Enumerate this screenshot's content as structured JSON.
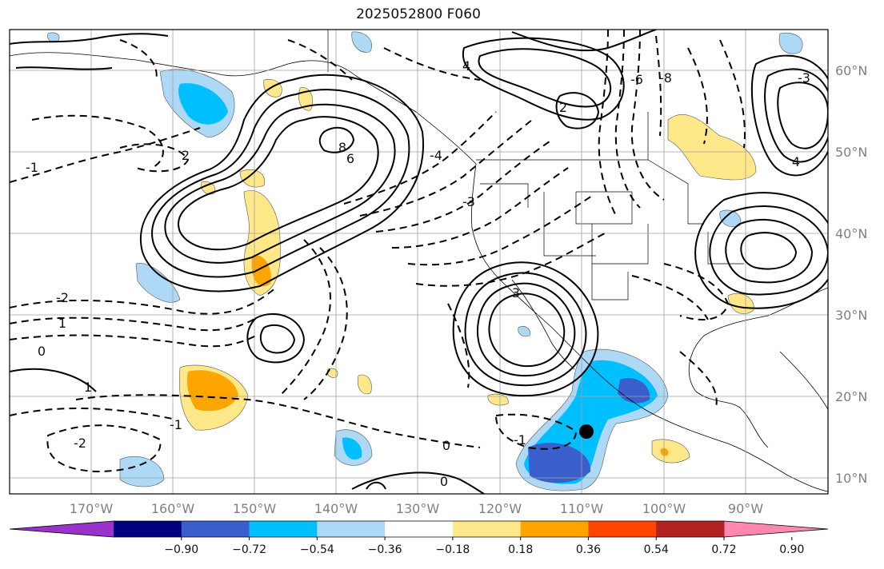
{
  "title": "2025052800 F060",
  "map": {
    "lat_labels": [
      "60°N",
      "50°N",
      "40°N",
      "30°N",
      "20°N",
      "10°N"
    ],
    "lon_labels": [
      "170°W",
      "160°W",
      "150°W",
      "140°W",
      "130°W",
      "120°W",
      "110°W",
      "100°W",
      "90°W"
    ]
  },
  "colorbar": {
    "colors": [
      "#9933cc",
      "#000080",
      "#3a5fcd",
      "#00bfff",
      "#add8f6",
      "#ffffff",
      "#ffe88a",
      "#ffa500",
      "#ff4500",
      "#b22222",
      "#ff88b0"
    ],
    "tick_labels": [
      "−0.90",
      "−0.72",
      "−0.54",
      "−0.36",
      "−0.18",
      "0.18",
      "0.36",
      "0.54",
      "0.72",
      "0.90"
    ]
  },
  "contour_labels": [
    "4",
    "2",
    "-1",
    "0",
    "-2",
    "1",
    "3",
    "-4",
    "8",
    "6",
    "-6",
    "-8",
    "-3",
    "2",
    "-1",
    "1",
    "0",
    "-1",
    "0",
    "-2",
    "4",
    "-3"
  ],
  "shading_colors": {
    "blue_light": "#add8f6",
    "blue_mid": "#00bfff",
    "blue_dark": "#3a5fcd",
    "yellow": "#ffe88a",
    "orange": "#ffa500"
  }
}
